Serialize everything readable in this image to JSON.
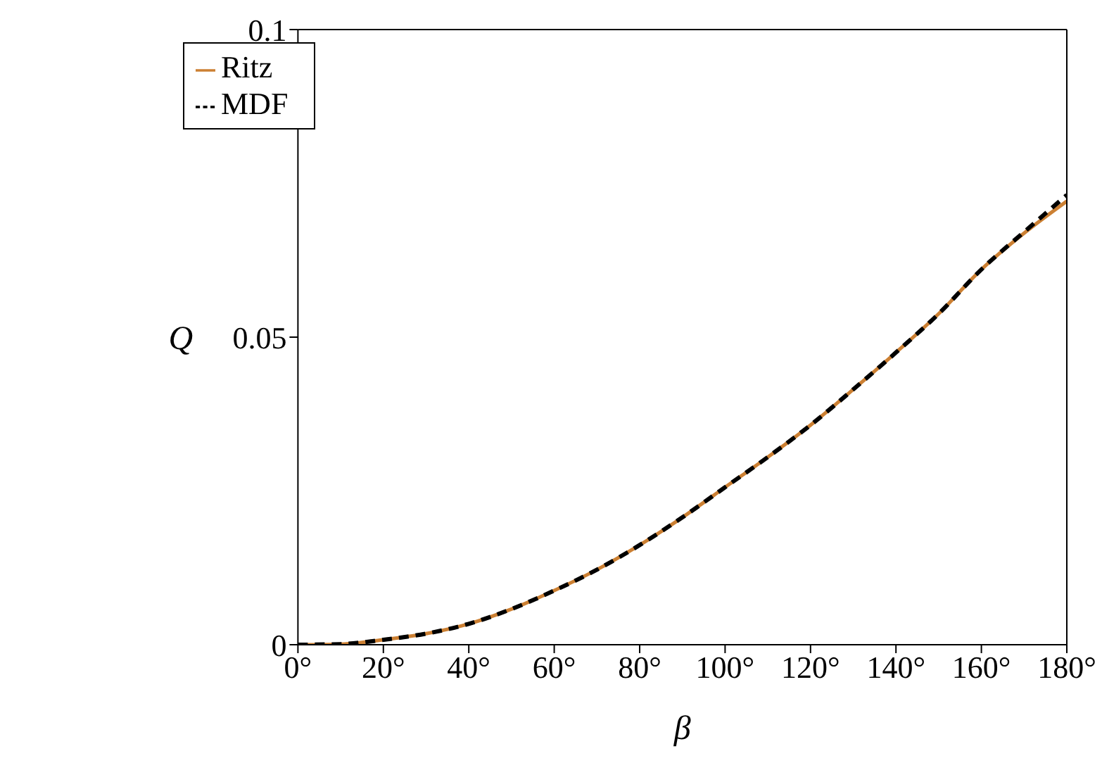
{
  "chart_data": {
    "type": "line",
    "xlabel": "β",
    "ylabel": "Q",
    "x": [
      0,
      10,
      20,
      30,
      40,
      50,
      60,
      70,
      80,
      90,
      100,
      110,
      120,
      130,
      140,
      150,
      160,
      170,
      180
    ],
    "series": [
      {
        "name": "Ritz",
        "color": "#cc8033",
        "line_style": "solid",
        "values": [
          0,
          0.0001,
          0.0008,
          0.0018,
          0.0034,
          0.0058,
          0.0088,
          0.0122,
          0.0162,
          0.0207,
          0.0256,
          0.0305,
          0.0357,
          0.0415,
          0.0475,
          0.0538,
          0.061,
          0.0669,
          0.0721
        ]
      },
      {
        "name": "MDF",
        "color": "#000000",
        "line_style": "dashed",
        "values": [
          0,
          0.0001,
          0.0008,
          0.0018,
          0.0034,
          0.0058,
          0.0088,
          0.0122,
          0.0162,
          0.0207,
          0.0256,
          0.0305,
          0.0357,
          0.0415,
          0.0475,
          0.0538,
          0.061,
          0.0671,
          0.0731
        ]
      }
    ],
    "xlim": [
      0,
      180
    ],
    "xticks": [
      {
        "value": 0,
        "label": "0°"
      },
      {
        "value": 20,
        "label": "20°"
      },
      {
        "value": 40,
        "label": "40°"
      },
      {
        "value": 60,
        "label": "60°"
      },
      {
        "value": 80,
        "label": "80°"
      },
      {
        "value": 100,
        "label": "100°"
      },
      {
        "value": 120,
        "label": "120°"
      },
      {
        "value": 140,
        "label": "140°"
      },
      {
        "value": 160,
        "label": "160°"
      },
      {
        "value": 180,
        "label": "180°"
      }
    ],
    "ylim": [
      0,
      0.1
    ],
    "yticks": [
      0,
      0.05,
      0.1
    ],
    "grid": false,
    "legend": "top left",
    "marker": "none"
  }
}
